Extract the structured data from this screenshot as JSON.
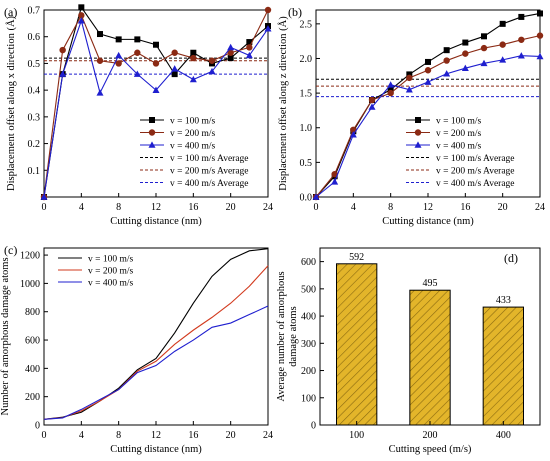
{
  "chart_data": [
    {
      "id": "a",
      "type": "line",
      "panel_label": "(a)",
      "xlabel": "Cutting distance (nm)",
      "ylabel": "Displacement offset along x direction (Å)",
      "xlim": [
        0,
        24
      ],
      "ylim": [
        0,
        0.7
      ],
      "xticks": [
        0,
        4,
        8,
        12,
        16,
        20,
        24
      ],
      "yticks": [
        0.1,
        0.2,
        0.3,
        0.4,
        0.5,
        0.6,
        0.7
      ],
      "legend_position": "bottom-right",
      "x": [
        0,
        2,
        4,
        6,
        8,
        10,
        12,
        14,
        16,
        18,
        20,
        22,
        24
      ],
      "series": [
        {
          "name": "v = 100 m/s",
          "color": "#000000",
          "marker": "square",
          "values": [
            0,
            0.46,
            0.71,
            0.61,
            0.59,
            0.59,
            0.57,
            0.46,
            0.54,
            0.5,
            0.52,
            0.58,
            0.64
          ],
          "average": 0.52
        },
        {
          "name": "v = 200 m/s",
          "color": "#8B2A14",
          "marker": "circle",
          "values": [
            0,
            0.55,
            0.68,
            0.51,
            0.5,
            0.54,
            0.5,
            0.54,
            0.52,
            0.51,
            0.54,
            0.56,
            0.7
          ],
          "average": 0.51
        },
        {
          "name": "v = 400 m/s",
          "color": "#1F1FCF",
          "marker": "triangle",
          "values": [
            0,
            0.46,
            0.66,
            0.39,
            0.53,
            0.46,
            0.4,
            0.48,
            0.44,
            0.47,
            0.56,
            0.53,
            0.63
          ],
          "average": 0.46
        }
      ],
      "legend": [
        "v = 100 m/s",
        "v = 200 m/s",
        "v = 400 m/s",
        "v = 100 m/s  Average",
        "v = 200 m/s  Average",
        "v = 400 m/s  Average"
      ]
    },
    {
      "id": "b",
      "type": "line",
      "panel_label": "(b)",
      "xlabel": "Cutting distance (nm)",
      "ylabel": "Displacement offset along z direction (Å)",
      "xlim": [
        0,
        24
      ],
      "ylim": [
        0,
        2.7
      ],
      "xticks": [
        0,
        4,
        8,
        12,
        16,
        20,
        24
      ],
      "yticks": [
        0.0,
        0.5,
        1.0,
        1.5,
        2.0,
        2.5
      ],
      "legend_position": "bottom-right",
      "x": [
        0,
        2,
        4,
        6,
        8,
        10,
        12,
        14,
        16,
        18,
        20,
        22,
        24
      ],
      "series": [
        {
          "name": "v = 100 m/s",
          "color": "#000000",
          "marker": "square",
          "values": [
            0,
            0.3,
            0.95,
            1.4,
            1.55,
            1.77,
            1.95,
            2.12,
            2.23,
            2.32,
            2.5,
            2.6,
            2.65
          ],
          "average": 1.7
        },
        {
          "name": "v = 200 m/s",
          "color": "#8B2A14",
          "marker": "circle",
          "values": [
            0,
            0.33,
            0.97,
            1.4,
            1.5,
            1.72,
            1.83,
            1.97,
            2.07,
            2.15,
            2.2,
            2.27,
            2.33
          ],
          "average": 1.6
        },
        {
          "name": "v = 400 m/s",
          "color": "#1F1FCF",
          "marker": "triangle",
          "values": [
            0,
            0.22,
            0.9,
            1.3,
            1.62,
            1.55,
            1.66,
            1.78,
            1.86,
            1.93,
            1.98,
            2.04,
            2.03
          ],
          "average": 1.45
        }
      ],
      "legend": [
        "v = 100 m/s",
        "v = 200 m/s",
        "v = 400 m/s",
        "v = 100 m/s  Average",
        "v = 200 m/s  Average",
        "v = 400 m/s  Average"
      ]
    },
    {
      "id": "c",
      "type": "line",
      "panel_label": "(c)",
      "xlabel": "Cutting distance (nm)",
      "ylabel": "Number of amorphous damage atoms",
      "xlim": [
        0,
        24
      ],
      "ylim": [
        0,
        1250
      ],
      "xticks": [
        0,
        4,
        8,
        12,
        16,
        20,
        24
      ],
      "yticks": [
        0,
        200,
        400,
        600,
        800,
        1000,
        1200
      ],
      "legend_position": "top-left",
      "x": [
        0,
        2,
        4,
        6,
        8,
        10,
        12,
        14,
        16,
        18,
        20,
        22,
        24
      ],
      "series": [
        {
          "name": "v = 100 m/s",
          "color": "#000000",
          "values": [
            40,
            55,
            90,
            170,
            260,
            390,
            470,
            650,
            860,
            1050,
            1170,
            1230,
            1245
          ]
        },
        {
          "name": "v = 200 m/s",
          "color": "#D23A1E",
          "values": [
            40,
            52,
            100,
            170,
            250,
            380,
            450,
            570,
            670,
            760,
            860,
            980,
            1125
          ]
        },
        {
          "name": "v = 400 m/s",
          "color": "#1F1FCF",
          "values": [
            40,
            50,
            110,
            180,
            250,
            370,
            420,
            520,
            600,
            690,
            720,
            780,
            840
          ]
        }
      ],
      "legend": [
        "v = 100 m/s",
        "v = 200 m/s",
        "v = 400 m/s"
      ]
    },
    {
      "id": "d",
      "type": "bar",
      "panel_label": "(d)",
      "xlabel": "Cutting speed (m/s)",
      "ylabel": "Average number of amorphous damage atoms",
      "categories": [
        "100",
        "200",
        "400"
      ],
      "values": [
        592,
        495,
        433
      ],
      "data_labels": [
        "592",
        "495",
        "433"
      ],
      "ylim": [
        0,
        650
      ],
      "yticks": [
        0,
        100,
        200,
        300,
        400,
        500,
        600
      ],
      "bar_color": "#E3B52A",
      "hatch_color": "#8A6A10"
    }
  ]
}
